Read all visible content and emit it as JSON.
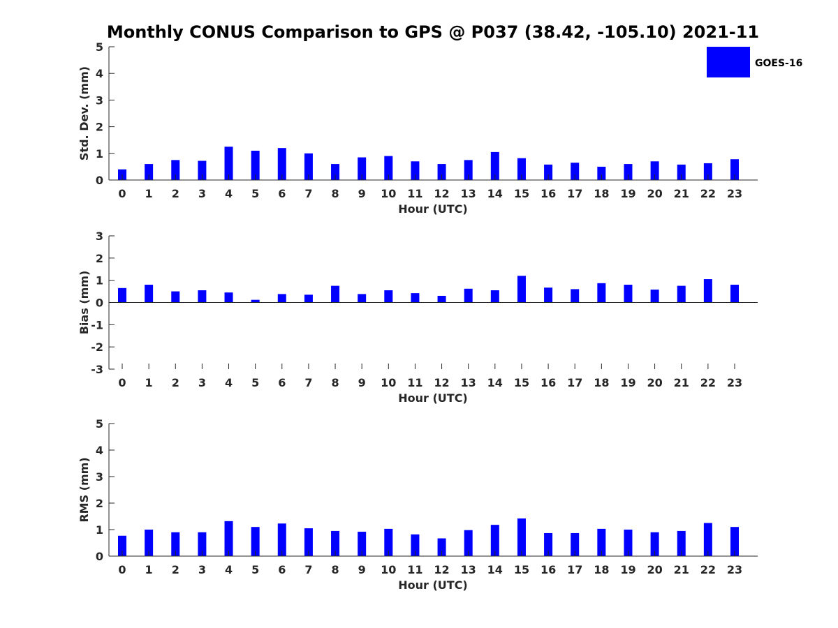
{
  "figure": {
    "title": "Monthly CONUS Comparison to GPS @ P037 (38.42, -105.10) 2021-11",
    "legend": {
      "label": "GOES-16",
      "placement": "top-right",
      "color": "#0000ff"
    }
  },
  "chart_data": [
    {
      "type": "bar",
      "name": "std-dev",
      "xlabel": "Hour (UTC)",
      "ylabel": "Std. Dev. (mm)",
      "ylim": [
        0,
        5
      ],
      "yticks": [
        0,
        1,
        2,
        3,
        4,
        5
      ],
      "color": "#0000ff",
      "categories": [
        "0",
        "1",
        "2",
        "3",
        "4",
        "5",
        "6",
        "7",
        "8",
        "9",
        "10",
        "11",
        "12",
        "13",
        "14",
        "15",
        "16",
        "17",
        "18",
        "19",
        "20",
        "21",
        "22",
        "23"
      ],
      "series": [
        {
          "name": "GOES-16",
          "values": [
            0.4,
            0.6,
            0.75,
            0.72,
            1.25,
            1.1,
            1.2,
            1.0,
            0.6,
            0.85,
            0.9,
            0.7,
            0.6,
            0.75,
            1.05,
            0.82,
            0.58,
            0.65,
            0.5,
            0.6,
            0.7,
            0.58,
            0.63,
            0.78
          ]
        }
      ]
    },
    {
      "type": "bar",
      "name": "bias",
      "xlabel": "Hour (UTC)",
      "ylabel": "Bias (mm)",
      "ylim": [
        -3,
        3
      ],
      "yticks": [
        -3,
        -2,
        -1,
        0,
        1,
        2,
        3
      ],
      "color": "#0000ff",
      "categories": [
        "0",
        "1",
        "2",
        "3",
        "4",
        "5",
        "6",
        "7",
        "8",
        "9",
        "10",
        "11",
        "12",
        "13",
        "14",
        "15",
        "16",
        "17",
        "18",
        "19",
        "20",
        "21",
        "22",
        "23"
      ],
      "series": [
        {
          "name": "GOES-16",
          "values": [
            0.65,
            0.8,
            0.5,
            0.55,
            0.45,
            0.12,
            0.38,
            0.35,
            0.75,
            0.38,
            0.55,
            0.42,
            0.3,
            0.62,
            0.55,
            1.2,
            0.67,
            0.6,
            0.87,
            0.8,
            0.58,
            0.75,
            1.05,
            0.8
          ]
        }
      ]
    },
    {
      "type": "bar",
      "name": "rms",
      "xlabel": "Hour (UTC)",
      "ylabel": "RMS (mm)",
      "ylim": [
        0,
        5
      ],
      "yticks": [
        0,
        1,
        2,
        3,
        4,
        5
      ],
      "color": "#0000ff",
      "categories": [
        "0",
        "1",
        "2",
        "3",
        "4",
        "5",
        "6",
        "7",
        "8",
        "9",
        "10",
        "11",
        "12",
        "13",
        "14",
        "15",
        "16",
        "17",
        "18",
        "19",
        "20",
        "21",
        "22",
        "23"
      ],
      "series": [
        {
          "name": "GOES-16",
          "values": [
            0.77,
            1.0,
            0.9,
            0.9,
            1.32,
            1.1,
            1.23,
            1.05,
            0.95,
            0.92,
            1.03,
            0.82,
            0.67,
            0.98,
            1.18,
            1.42,
            0.87,
            0.87,
            1.03,
            1.0,
            0.9,
            0.95,
            1.25,
            1.1
          ]
        }
      ]
    }
  ]
}
